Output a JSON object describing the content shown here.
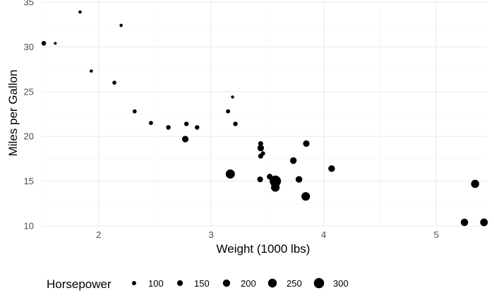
{
  "chart_data": {
    "type": "scatter",
    "xlabel": "Weight (1000 lbs)",
    "ylabel": "Miles per Gallon",
    "xlim": [
      1.5,
      5.45
    ],
    "ylim": [
      10,
      35
    ],
    "x_ticks": [
      2,
      3,
      4,
      5
    ],
    "y_ticks": [
      10,
      15,
      20,
      25,
      30,
      35
    ],
    "grid": true,
    "size_legend": {
      "title": "Horsepower",
      "position": "bottom",
      "values": [
        100,
        150,
        200,
        250,
        300
      ],
      "labels": [
        "100",
        "150",
        "200",
        "250",
        "300"
      ]
    },
    "point_color": "#000000",
    "points": [
      {
        "x": 1.513,
        "y": 30.4,
        "size": 113
      },
      {
        "x": 1.615,
        "y": 30.4,
        "size": 52
      },
      {
        "x": 1.835,
        "y": 33.9,
        "size": 65
      },
      {
        "x": 1.935,
        "y": 27.3,
        "size": 66
      },
      {
        "x": 2.14,
        "y": 26.0,
        "size": 91
      },
      {
        "x": 2.2,
        "y": 32.4,
        "size": 66
      },
      {
        "x": 2.32,
        "y": 22.8,
        "size": 93
      },
      {
        "x": 2.465,
        "y": 21.5,
        "size": 97
      },
      {
        "x": 2.62,
        "y": 21.0,
        "size": 110
      },
      {
        "x": 2.77,
        "y": 19.7,
        "size": 175
      },
      {
        "x": 2.78,
        "y": 21.4,
        "size": 109
      },
      {
        "x": 2.875,
        "y": 21.0,
        "size": 110
      },
      {
        "x": 3.15,
        "y": 22.8,
        "size": 95
      },
      {
        "x": 3.17,
        "y": 15.8,
        "size": 264
      },
      {
        "x": 3.19,
        "y": 24.4,
        "size": 62
      },
      {
        "x": 3.215,
        "y": 21.4,
        "size": 110
      },
      {
        "x": 3.435,
        "y": 15.2,
        "size": 150
      },
      {
        "x": 3.44,
        "y": 18.7,
        "size": 175
      },
      {
        "x": 3.44,
        "y": 19.2,
        "size": 123
      },
      {
        "x": 3.44,
        "y": 17.8,
        "size": 123
      },
      {
        "x": 3.46,
        "y": 18.1,
        "size": 105
      },
      {
        "x": 3.52,
        "y": 15.5,
        "size": 150
      },
      {
        "x": 3.57,
        "y": 14.3,
        "size": 245
      },
      {
        "x": 3.57,
        "y": 15.0,
        "size": 335
      },
      {
        "x": 3.73,
        "y": 17.3,
        "size": 180
      },
      {
        "x": 3.78,
        "y": 15.2,
        "size": 180
      },
      {
        "x": 3.84,
        "y": 13.3,
        "size": 245
      },
      {
        "x": 3.845,
        "y": 19.2,
        "size": 175
      },
      {
        "x": 4.07,
        "y": 16.4,
        "size": 180
      },
      {
        "x": 5.25,
        "y": 10.4,
        "size": 205
      },
      {
        "x": 5.345,
        "y": 14.7,
        "size": 230
      },
      {
        "x": 5.424,
        "y": 10.4,
        "size": 215
      }
    ]
  }
}
